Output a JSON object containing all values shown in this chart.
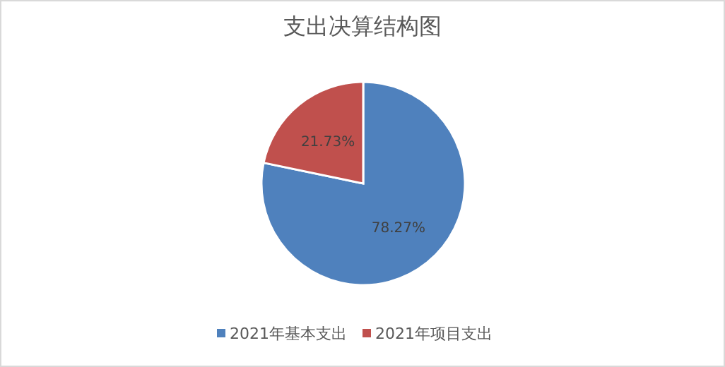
{
  "chart_data": {
    "type": "pie",
    "title": "支出决算结构图",
    "categories": [
      "2021年基本支出",
      "2021年项目支出"
    ],
    "values": [
      78.27,
      21.73
    ],
    "value_labels": [
      "78.27%",
      "21.73%"
    ],
    "colors": [
      "#4f81bd",
      "#c0504d"
    ],
    "legend": "bottom"
  }
}
